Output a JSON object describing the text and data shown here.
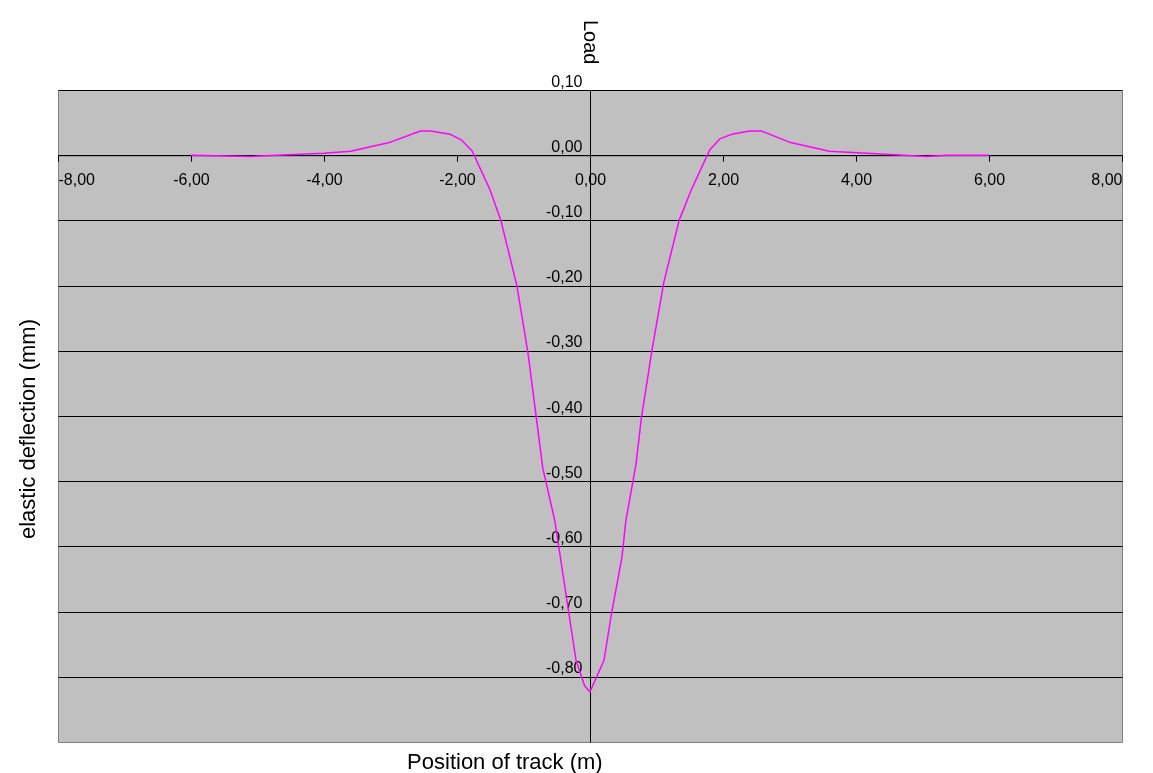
{
  "chart_data": {
    "type": "line",
    "xlabel": "Position of track (m)",
    "ylabel": "elastic deflection (mm)",
    "x": [
      -6.0,
      -5.1,
      -4.0,
      -3.6,
      -3.0,
      -2.55,
      -2.4,
      -2.1,
      -1.93,
      -1.77,
      -1.5,
      -1.34,
      -1.1,
      -0.93,
      -0.71,
      -0.53,
      -0.21,
      -0.08,
      0.0,
      0.21,
      0.32,
      0.48,
      0.54,
      0.69,
      0.77,
      0.93,
      1.11,
      1.34,
      1.52,
      1.8,
      1.95,
      2.13,
      2.4,
      2.58,
      3.0,
      3.6,
      4.16,
      5.07,
      5.37,
      6.0
    ],
    "series": [
      {
        "color": "#ff00ff",
        "values": [
          0.0,
          -0.002,
          0.003,
          0.006,
          0.02,
          0.037,
          0.037,
          0.032,
          0.023,
          0.006,
          -0.054,
          -0.1,
          -0.2,
          -0.305,
          -0.48,
          -0.56,
          -0.775,
          -0.814,
          -0.823,
          -0.775,
          -0.705,
          -0.617,
          -0.56,
          -0.475,
          -0.405,
          -0.3,
          -0.195,
          -0.1,
          -0.054,
          0.008,
          0.025,
          0.032,
          0.037,
          0.037,
          0.02,
          0.006,
          0.003,
          -0.002,
          0.0,
          0.0
        ]
      }
    ],
    "xlim": [
      -8,
      8
    ],
    "ylim": [
      -0.9,
      0.1
    ],
    "xticks": [
      {
        "value": -8,
        "label": "-8,00"
      },
      {
        "value": -6,
        "label": "-6,00"
      },
      {
        "value": -4,
        "label": "-4,00"
      },
      {
        "value": -2,
        "label": "-2,00"
      },
      {
        "value": 0,
        "label": "0,00"
      },
      {
        "value": 2,
        "label": "2,00"
      },
      {
        "value": 4,
        "label": "4,00"
      },
      {
        "value": 6,
        "label": "6,00"
      },
      {
        "value": 8,
        "label": "8,00"
      }
    ],
    "yticks": [
      {
        "value": 0.1,
        "label": "0,10"
      },
      {
        "value": 0,
        "label": "0,00"
      },
      {
        "value": -0.1,
        "label": "-0,10"
      },
      {
        "value": -0.2,
        "label": "-0,20"
      },
      {
        "value": -0.3,
        "label": "-0,30"
      },
      {
        "value": -0.4,
        "label": "-0,40"
      },
      {
        "value": -0.5,
        "label": "-0,50"
      },
      {
        "value": -0.6,
        "label": "-0,60"
      },
      {
        "value": -0.7,
        "label": "-0,70"
      },
      {
        "value": -0.8,
        "label": "-0,80"
      }
    ],
    "grid": "y",
    "marker": "none",
    "line_style": "solid",
    "annotations": [
      "Load"
    ]
  }
}
